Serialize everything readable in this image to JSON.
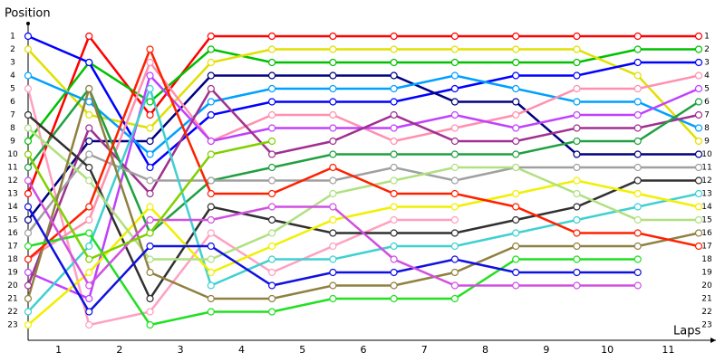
{
  "chart_data": {
    "type": "lap",
    "y_label": "Position",
    "x_label": "Laps",
    "x": [
      0,
      1,
      2,
      3,
      4,
      5,
      6,
      7,
      8,
      9,
      10,
      11
    ],
    "xlim": [
      0,
      11
    ],
    "xticks": [
      {
        "value": 0.5,
        "label": "1"
      },
      {
        "value": 1.5,
        "label": "2"
      },
      {
        "value": 2.5,
        "label": "3"
      },
      {
        "value": 3.5,
        "label": "4"
      },
      {
        "value": 4.5,
        "label": "5"
      },
      {
        "value": 5.5,
        "label": "6"
      },
      {
        "value": 6.5,
        "label": "7"
      },
      {
        "value": 7.5,
        "label": "8"
      },
      {
        "value": 8.5,
        "label": "9"
      },
      {
        "value": 9.5,
        "label": "10"
      },
      {
        "value": 10.5,
        "label": "11"
      }
    ],
    "ylim": [
      1,
      23
    ],
    "y_reversed": true,
    "yticks": [
      1,
      2,
      3,
      4,
      5,
      6,
      7,
      8,
      9,
      10,
      11,
      12,
      13,
      14,
      15,
      16,
      17,
      18,
      19,
      20,
      21,
      22,
      23
    ],
    "series": [
      {
        "color": "#ff0000",
        "values": [
          13,
          1,
          7,
          1,
          1,
          1,
          1,
          1,
          1,
          1,
          1,
          1
        ]
      },
      {
        "color": "#00c000",
        "values": [
          9,
          3,
          6,
          2,
          3,
          3,
          3,
          3,
          3,
          3,
          2,
          2
        ]
      },
      {
        "color": "#e0e000",
        "values": [
          2,
          7,
          8,
          3,
          2,
          2,
          2,
          2,
          2,
          2,
          4,
          9
        ]
      },
      {
        "color": "#0000ff",
        "values": [
          1,
          3,
          11,
          7,
          6,
          6,
          6,
          5,
          4,
          4,
          3,
          3
        ]
      },
      {
        "color": "#000080",
        "values": [
          15,
          9,
          9,
          4,
          4,
          4,
          4,
          6,
          6,
          10,
          10,
          10
        ]
      },
      {
        "color": "#00a0ff",
        "values": [
          4,
          6,
          10,
          6,
          5,
          5,
          5,
          4,
          5,
          6,
          6,
          8
        ]
      },
      {
        "color": "#ffa0c0",
        "values": [
          5,
          23,
          22,
          16,
          19,
          17,
          15,
          15,
          null,
          null,
          null,
          null
        ]
      },
      {
        "color": "#ff90b0",
        "values": [
          18,
          15,
          3,
          9,
          7,
          7,
          9,
          8,
          7,
          5,
          5,
          4
        ]
      },
      {
        "color": "#c040ff",
        "values": [
          19,
          21,
          4,
          9,
          8,
          8,
          8,
          7,
          8,
          7,
          7,
          5
        ]
      },
      {
        "color": "#a03090",
        "values": [
          20,
          8,
          13,
          5,
          10,
          9,
          7,
          9,
          9,
          8,
          8,
          7
        ]
      },
      {
        "color": "#20a040",
        "values": [
          11,
          5,
          16,
          12,
          11,
          10,
          10,
          10,
          10,
          9,
          9,
          6
        ]
      },
      {
        "color": "#a0a0a0",
        "values": [
          16,
          10,
          12,
          12,
          12,
          12,
          11,
          12,
          11,
          11,
          11,
          11
        ]
      },
      {
        "color": "#303030",
        "values": [
          7,
          11,
          21,
          14,
          15,
          16,
          16,
          16,
          15,
          14,
          12,
          12
        ]
      },
      {
        "color": "#40d0d0",
        "values": [
          22,
          17,
          5,
          20,
          18,
          18,
          17,
          17,
          16,
          15,
          14,
          13
        ]
      },
      {
        "color": "#f0f000",
        "values": [
          23,
          19,
          14,
          19,
          17,
          15,
          14,
          14,
          13,
          12,
          13,
          14
        ]
      },
      {
        "color": "#b0e080",
        "values": [
          8,
          12,
          18,
          18,
          16,
          13,
          12,
          11,
          11,
          13,
          15,
          15
        ]
      },
      {
        "color": "#908040",
        "values": [
          21,
          5,
          19,
          21,
          21,
          20,
          20,
          19,
          17,
          17,
          17,
          16
        ]
      },
      {
        "color": "#ff2000",
        "values": [
          18,
          14,
          2,
          13,
          13,
          11,
          13,
          13,
          14,
          16,
          16,
          17
        ]
      },
      {
        "color": "#20e020",
        "values": [
          17,
          16,
          23,
          22,
          22,
          21,
          21,
          21,
          18,
          18,
          18,
          null
        ]
      },
      {
        "color": "#1010e0",
        "values": [
          14,
          22,
          17,
          17,
          20,
          19,
          19,
          18,
          19,
          19,
          19,
          null
        ]
      },
      {
        "color": "#d050e0",
        "values": [
          12,
          20,
          15,
          15,
          14,
          14,
          18,
          20,
          20,
          20,
          20,
          null
        ]
      },
      {
        "color": "#80d000",
        "values": [
          10,
          18,
          16,
          10,
          9,
          null,
          null,
          null,
          null,
          null,
          null,
          null
        ]
      }
    ]
  }
}
